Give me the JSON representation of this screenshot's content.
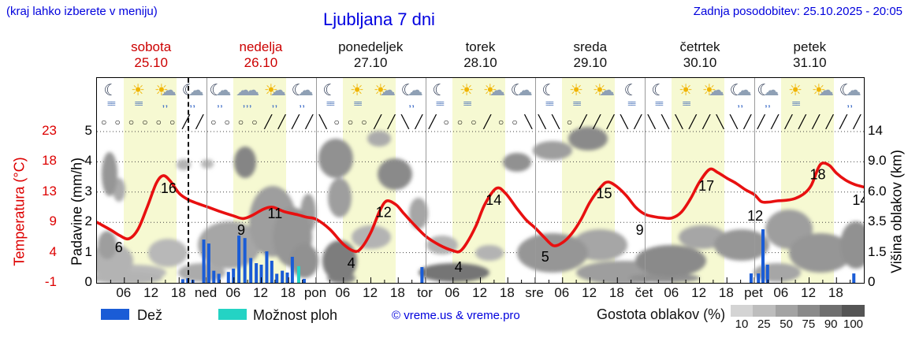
{
  "header": {
    "note": "(kraj lahko izberete v meniju)",
    "title": "Ljubljana 7 dni",
    "updated": "Zadnja posodobitev: 25.10.2025 - 20:05"
  },
  "days": [
    {
      "name": "sobota",
      "date": "25.10",
      "red": true,
      "icons": [
        "moon-fog",
        "sun-fog",
        "sun-cloud-rain",
        "moon-cloud-rain"
      ],
      "wind": [
        "o",
        "o",
        "o",
        "o",
        "o",
        "o",
        "/",
        "/"
      ]
    },
    {
      "name": "nedelja",
      "date": "26.10",
      "red": true,
      "icons": [
        "moon-cloud-rain",
        "cloud-rain",
        "sun-cloud-rain",
        "moon-cloud-rain"
      ],
      "wind": [
        "o",
        "o",
        "o",
        "o",
        "/",
        "/",
        "/",
        "/"
      ]
    },
    {
      "name": "ponedeljek",
      "date": "27.10",
      "red": false,
      "icons": [
        "moon-fog",
        "sun-fog",
        "sun-cloud",
        "moon-cloud-rain"
      ],
      "wind": [
        "\\",
        "o",
        "o",
        "o",
        "/",
        "/",
        "\\",
        "/"
      ]
    },
    {
      "name": "torek",
      "date": "28.10",
      "red": false,
      "icons": [
        "moon-fog",
        "sun-fog",
        "sun-cloud",
        "moon-cloud"
      ],
      "wind": [
        "/",
        "o",
        "o",
        "o",
        "/",
        "o",
        "o",
        "\\"
      ]
    },
    {
      "name": "sreda",
      "date": "29.10",
      "red": false,
      "icons": [
        "moon-fog",
        "sun-fog",
        "sun-cloud",
        "moon-fog"
      ],
      "wind": [
        "\\",
        "\\",
        "o",
        "/",
        "/",
        "/",
        "\\",
        "/"
      ]
    },
    {
      "name": "četrtek",
      "date": "30.10",
      "red": false,
      "icons": [
        "moon-fog",
        "sun-fog",
        "sun-cloud",
        "moon-cloud-rain"
      ],
      "wind": [
        "\\",
        "\\",
        "\\",
        "/",
        "/",
        "\\",
        "\\",
        "/"
      ]
    },
    {
      "name": "petek",
      "date": "31.10",
      "red": false,
      "icons": [
        "moon-cloud-rain",
        "sun-fog",
        "sun-cloud",
        "moon-cloud-rain"
      ],
      "wind": [
        "/",
        "/",
        "/",
        "/",
        "/",
        "/",
        "/",
        "/"
      ]
    }
  ],
  "axes": {
    "temp": {
      "title": "Temperatura (°C)",
      "ticks": [
        "23",
        "18",
        "13",
        "9",
        "4",
        "-1"
      ],
      "color": "#dd0000"
    },
    "precip": {
      "title": "Padavine (mm/h)",
      "ticks": [
        "5",
        "4",
        "3",
        "2",
        "1",
        "0"
      ]
    },
    "cloudheight": {
      "title": "Višina oblakov (km)",
      "ticks": [
        "14",
        "9.0",
        "6.0",
        "3.5",
        "1.5",
        "0"
      ]
    },
    "hours": [
      "06",
      "12",
      "18"
    ],
    "day_abbr": [
      "ned",
      "pon",
      "tor",
      "sre",
      "čet",
      "pet"
    ]
  },
  "legend": {
    "rain_label": "Dež",
    "showers_label": "Možnost ploh",
    "copyright": "© vreme.us & vreme.pro",
    "cloud_density_label": "Gostota oblakov (%)",
    "density_ticks": [
      "10",
      "25",
      "50",
      "75",
      "90",
      "100"
    ],
    "density_colors": [
      "#d4d4d4",
      "#bdbdbd",
      "#a3a3a3",
      "#8a8a8a",
      "#6f6f6f",
      "#555555"
    ],
    "rain_color": "#1a5cd6",
    "showers_color": "#24d3c4"
  },
  "chart_data": {
    "type": "line",
    "x_range_hours": 168,
    "y_precip_range": [
      0,
      5
    ],
    "y_temp_range": [
      -1,
      23
    ],
    "now_hour": 20.1,
    "temperature": {
      "color": "#e81010",
      "series": [
        [
          0,
          8.6
        ],
        [
          3,
          7.4
        ],
        [
          5,
          6.5
        ],
        [
          7,
          6
        ],
        [
          9,
          7.5
        ],
        [
          11,
          11
        ],
        [
          13,
          14.8
        ],
        [
          14.5,
          16
        ],
        [
          16,
          15.2
        ],
        [
          18,
          13.2
        ],
        [
          20,
          12.2
        ],
        [
          22,
          11.6
        ],
        [
          24,
          11.1
        ],
        [
          27,
          10.3
        ],
        [
          30,
          9.6
        ],
        [
          32,
          9.2
        ],
        [
          34,
          9.7
        ],
        [
          36.5,
          10.7
        ],
        [
          38.5,
          11
        ],
        [
          41,
          10.3
        ],
        [
          44,
          9.8
        ],
        [
          46,
          9.4
        ],
        [
          48,
          9.1
        ],
        [
          51,
          7.5
        ],
        [
          54,
          5.1
        ],
        [
          56.5,
          4
        ],
        [
          58,
          4.6
        ],
        [
          60,
          7
        ],
        [
          62,
          10.5
        ],
        [
          63.5,
          12
        ],
        [
          65.5,
          11.4
        ],
        [
          67,
          10.2
        ],
        [
          69,
          8.6
        ],
        [
          72,
          6.4
        ],
        [
          75,
          5
        ],
        [
          78,
          4.1
        ],
        [
          79.5,
          4
        ],
        [
          81,
          5.3
        ],
        [
          83,
          8
        ],
        [
          85,
          11.5
        ],
        [
          87.5,
          14
        ],
        [
          89.5,
          13.2
        ],
        [
          92,
          10.8
        ],
        [
          94,
          9
        ],
        [
          96,
          7.7
        ],
        [
          98,
          6.2
        ],
        [
          100,
          4.9
        ],
        [
          102,
          5.4
        ],
        [
          104,
          6.8
        ],
        [
          106,
          9
        ],
        [
          108,
          11.8
        ],
        [
          110.5,
          14.3
        ],
        [
          112,
          15
        ],
        [
          114,
          14.2
        ],
        [
          116,
          12.8
        ],
        [
          118,
          11
        ],
        [
          120,
          9.9
        ],
        [
          122,
          9.5
        ],
        [
          124,
          9.3
        ],
        [
          126,
          9.3
        ],
        [
          128,
          10.2
        ],
        [
          130,
          12.3
        ],
        [
          132,
          15
        ],
        [
          134.2,
          17
        ],
        [
          136,
          16.5
        ],
        [
          138,
          15.6
        ],
        [
          140,
          14.8
        ],
        [
          142,
          13.8
        ],
        [
          144,
          13
        ],
        [
          145.5,
          11.9
        ],
        [
          147,
          11.8
        ],
        [
          149,
          12
        ],
        [
          151,
          12.1
        ],
        [
          153,
          12.4
        ],
        [
          155,
          13.2
        ],
        [
          156.5,
          14.5
        ],
        [
          158,
          17.2
        ],
        [
          159,
          18
        ],
        [
          160.5,
          17.6
        ],
        [
          162,
          16.4
        ],
        [
          164,
          15.3
        ],
        [
          166,
          14.6
        ],
        [
          168,
          14.2
        ]
      ],
      "labels": [
        {
          "v": "6",
          "h": 4.8,
          "t": 4.6
        },
        {
          "v": "16",
          "h": 15.7,
          "t": 14
        },
        {
          "v": "9",
          "h": 31.6,
          "t": 7.4
        },
        {
          "v": "11",
          "h": 39,
          "t": 10
        },
        {
          "v": "4",
          "h": 55.7,
          "t": 2.1
        },
        {
          "v": "12",
          "h": 62.8,
          "t": 10.2
        },
        {
          "v": "4",
          "h": 79.2,
          "t": 1.5
        },
        {
          "v": "14",
          "h": 86.9,
          "t": 12.1
        },
        {
          "v": "5",
          "h": 98.2,
          "t": 3.1
        },
        {
          "v": "15",
          "h": 111.1,
          "t": 13.2
        },
        {
          "v": "9",
          "h": 118.9,
          "t": 7.4
        },
        {
          "v": "17",
          "h": 133.5,
          "t": 14.4
        },
        {
          "v": "12",
          "h": 144.2,
          "t": 9.6
        },
        {
          "v": "18",
          "h": 157.9,
          "t": 16.2
        },
        {
          "v": "14",
          "h": 167.2,
          "t": 12.1
        }
      ]
    },
    "precipitation": {
      "unit": "mm/h",
      "bars": [
        [
          18.8,
          0.12
        ],
        [
          19.9,
          0.15
        ],
        [
          21,
          0.1
        ],
        [
          23.4,
          1.43
        ],
        [
          24.5,
          1.3
        ],
        [
          25.6,
          0.4
        ],
        [
          26.7,
          0.3
        ],
        [
          28.8,
          0.36
        ],
        [
          29.9,
          0.47
        ],
        [
          31.1,
          1.56
        ],
        [
          32.4,
          1.48
        ],
        [
          33.7,
          0.82
        ],
        [
          34.9,
          0.65
        ],
        [
          36,
          0.6
        ],
        [
          37.2,
          1.04
        ],
        [
          38.3,
          0.73
        ],
        [
          39.4,
          0.3
        ],
        [
          40.6,
          0.4
        ],
        [
          41.7,
          0.34
        ],
        [
          42.8,
          0.86
        ],
        [
          45.4,
          0.13
        ],
        [
          71.2,
          0.52
        ],
        [
          143.3,
          0.31
        ],
        [
          144.9,
          0.31
        ],
        [
          145.9,
          1.77
        ],
        [
          146.9,
          0.6
        ],
        [
          165.8,
          0.31
        ]
      ],
      "showers": [
        [
          44.2,
          0.55
        ]
      ]
    },
    "clouds": [
      [
        18,
        232,
        28,
        22,
        0.35
      ],
      [
        13,
        212,
        12,
        18,
        0.5
      ],
      [
        48,
        247,
        40,
        10,
        0.3
      ],
      [
        16,
        122,
        10,
        28,
        0.55
      ],
      [
        28,
        142,
        8,
        15,
        0.4
      ],
      [
        110,
        110,
        9,
        7,
        0.35
      ],
      [
        140,
        109,
        8,
        6,
        0.3
      ],
      [
        90,
        222,
        25,
        18,
        0.3
      ],
      [
        38,
        254,
        45,
        8,
        0.35
      ],
      [
        168,
        212,
        40,
        30,
        0.45
      ],
      [
        133,
        247,
        30,
        12,
        0.4
      ],
      [
        188,
        107,
        14,
        20,
        0.7
      ],
      [
        223,
        182,
        30,
        45,
        0.5
      ],
      [
        248,
        202,
        25,
        38,
        0.55
      ],
      [
        268,
        172,
        10,
        25,
        0.5
      ],
      [
        263,
        232,
        18,
        22,
        0.6
      ],
      [
        303,
        102,
        22,
        25,
        0.6
      ],
      [
        308,
        152,
        15,
        25,
        0.5
      ],
      [
        308,
        232,
        22,
        26,
        0.75
      ],
      [
        310,
        254,
        18,
        7,
        0.7
      ],
      [
        348,
        202,
        25,
        15,
        0.35
      ],
      [
        378,
        122,
        22,
        20,
        0.65
      ],
      [
        358,
        77,
        15,
        10,
        0.4
      ],
      [
        408,
        172,
        12,
        20,
        0.45
      ],
      [
        453,
        247,
        45,
        12,
        0.8
      ],
      [
        438,
        212,
        20,
        12,
        0.35
      ],
      [
        498,
        222,
        18,
        10,
        0.35
      ],
      [
        533,
        107,
        18,
        12,
        0.6
      ],
      [
        578,
        92,
        25,
        12,
        0.5
      ],
      [
        623,
        77,
        25,
        15,
        0.65
      ],
      [
        578,
        222,
        45,
        25,
        0.55
      ],
      [
        638,
        212,
        35,
        20,
        0.45
      ],
      [
        668,
        247,
        60,
        15,
        0.5
      ],
      [
        728,
        232,
        45,
        20,
        0.65
      ],
      [
        720,
        254,
        45,
        6,
        0.6
      ],
      [
        768,
        202,
        30,
        15,
        0.45
      ],
      [
        818,
        212,
        35,
        20,
        0.55
      ],
      [
        863,
        247,
        30,
        12,
        0.45
      ],
      [
        878,
        192,
        30,
        25,
        0.5
      ],
      [
        918,
        222,
        40,
        25,
        0.55
      ],
      [
        963,
        212,
        20,
        30,
        0.6
      ]
    ]
  }
}
